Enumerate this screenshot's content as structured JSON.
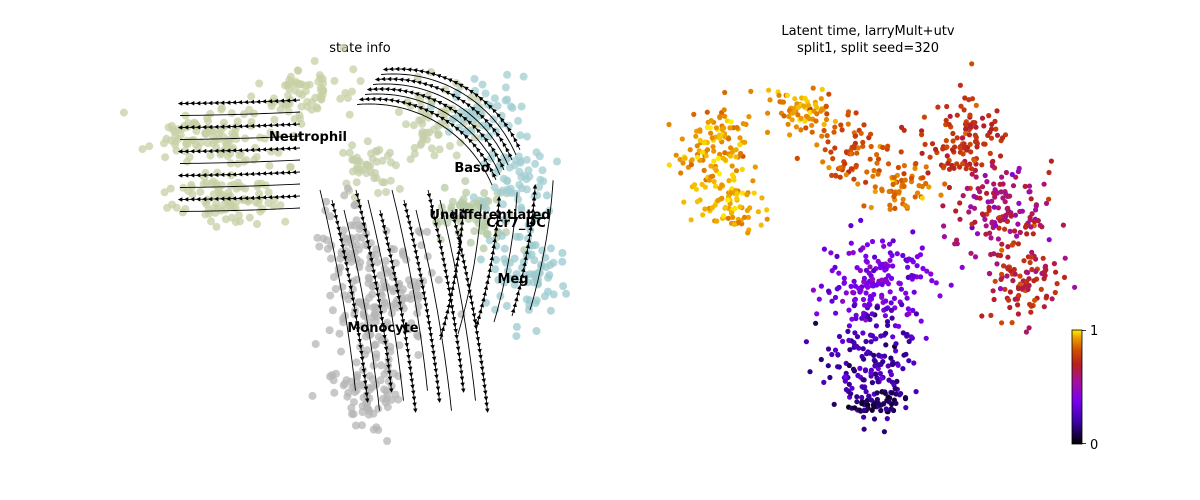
{
  "chart_data": [
    {
      "type": "scatter",
      "title": "state info",
      "overlay": "velocity-stream",
      "grid": false,
      "axes_visible": false,
      "cluster_colors": {
        "Neutrophil": "#c7d0a4",
        "Baso": "#c4cfa8",
        "Undifferentiated": "#b7c9a6",
        "Ccr7_DC": "#a2cdd2",
        "Meg": "#99c9ce",
        "Monocyte": "#b5b5b5"
      },
      "cluster_labels": [
        {
          "id": "neutrophil",
          "text": "Neutrophil"
        },
        {
          "id": "baso",
          "text": "Baso"
        },
        {
          "id": "undifferentiated",
          "text": "Undifferentiated"
        },
        {
          "id": "ccr7-dc",
          "text": "Ccr7_DC"
        },
        {
          "id": "meg",
          "text": "Meg"
        },
        {
          "id": "monocyte",
          "text": "Monocyte"
        }
      ]
    },
    {
      "type": "scatter",
      "title_line1": "Latent time, larryMult+utv",
      "title_line2": "split1, split seed=320",
      "color_variable": "latent time",
      "colormap": "gnuplot",
      "colorbar": {
        "min": 0,
        "max": 1,
        "tick_labels": [
          "1",
          "0"
        ]
      },
      "grid": false,
      "axes_visible": false
    }
  ]
}
